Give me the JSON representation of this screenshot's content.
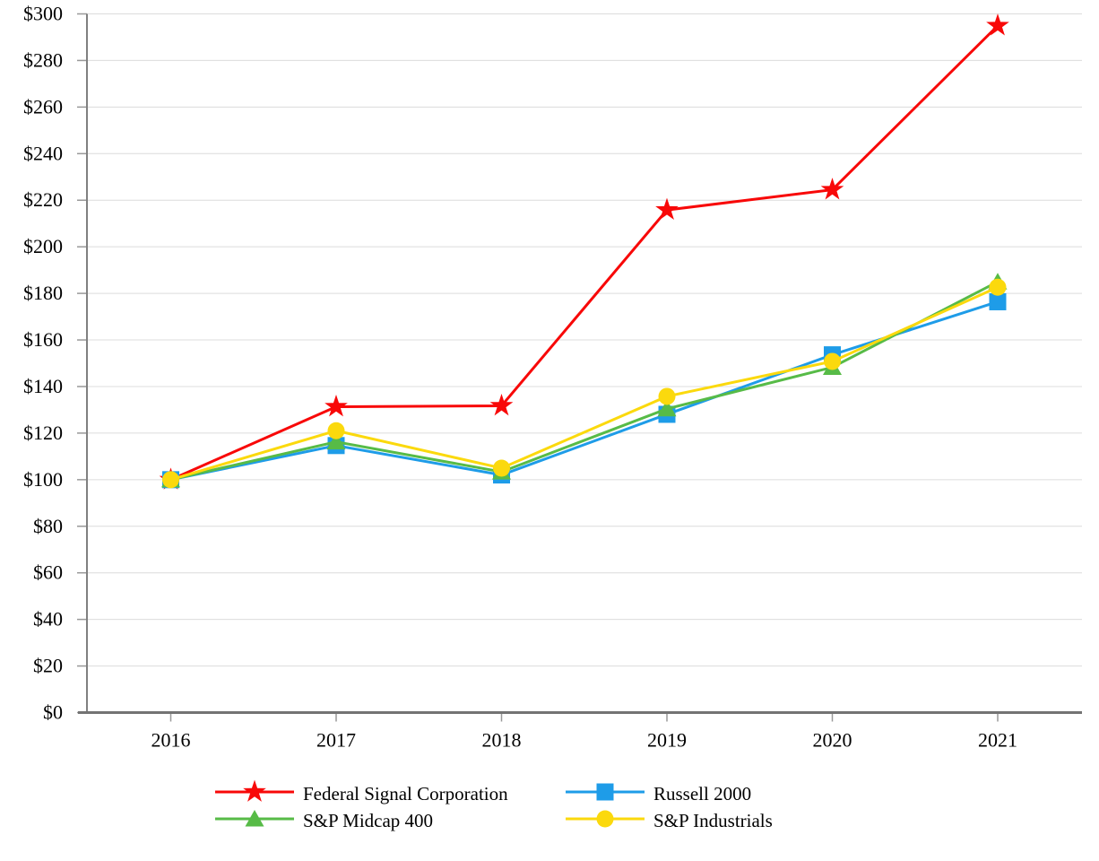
{
  "chart_data": {
    "type": "line",
    "title": "",
    "xlabel": "",
    "ylabel": "",
    "x_categories": [
      "2016",
      "2017",
      "2018",
      "2019",
      "2020",
      "2021"
    ],
    "y_axis": {
      "min": 0,
      "max": 300,
      "step": 20,
      "tick_labels": [
        "$0",
        "$20",
        "$40",
        "$60",
        "$80",
        "$100",
        "$120",
        "$140",
        "$160",
        "$180",
        "$200",
        "$220",
        "$240",
        "$260",
        "$280",
        "$300"
      ]
    },
    "grid": "horizontal",
    "legend_position": "bottom",
    "series": [
      {
        "name": "Federal Signal Corporation",
        "marker": "star",
        "color": "#F80808",
        "values": [
          100.0,
          131.32,
          131.72,
          215.8,
          224.49,
          294.94
        ]
      },
      {
        "name": "Russell 2000",
        "marker": "square",
        "color": "#1E9CE8",
        "values": [
          100.0,
          114.65,
          102.02,
          128.06,
          153.62,
          176.39
        ]
      },
      {
        "name": "S&P Midcap 400",
        "marker": "triangle",
        "color": "#57BB47",
        "values": [
          100.0,
          116.24,
          103.36,
          130.44,
          148.26,
          184.97
        ]
      },
      {
        "name": "S&P Industrials",
        "marker": "circle",
        "color": "#FBD90D",
        "values": [
          100.0,
          121.03,
          104.95,
          135.77,
          150.79,
          182.64
        ]
      }
    ],
    "colors": {
      "grid_line": "#DCDCDC",
      "axis_line": "#808080",
      "bottom_axis_line": "#737373",
      "tick_mark": "#999999",
      "text": "#000000",
      "background": "#FFFFFF"
    }
  }
}
